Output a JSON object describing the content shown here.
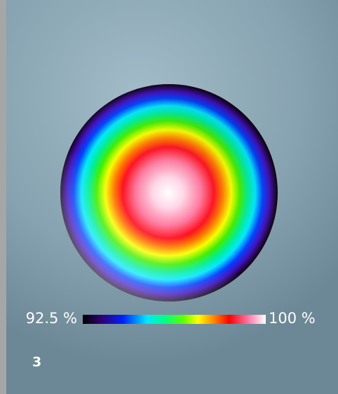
{
  "colorbar": {
    "min_label": "92.5 %",
    "max_label": "100 %"
  },
  "panel_label": "3"
}
